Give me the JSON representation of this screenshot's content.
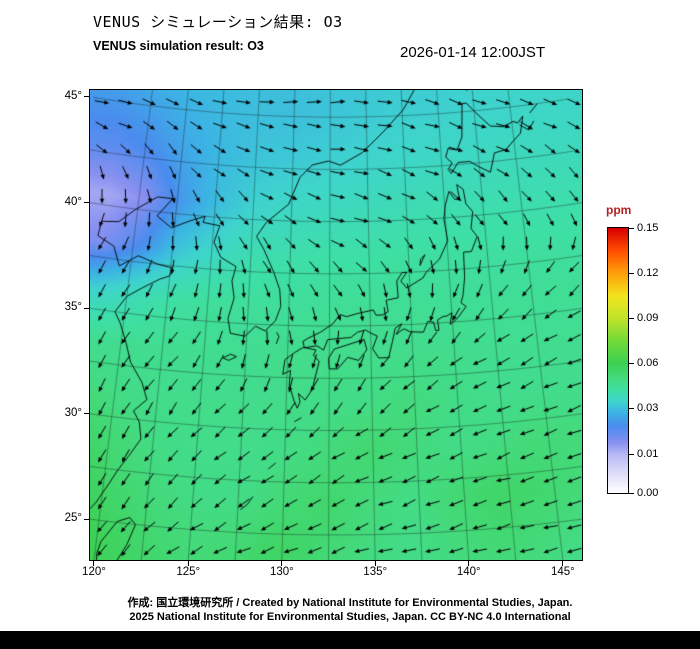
{
  "header": {
    "title_ja": "VENUS シミュレーション結果: O3",
    "title_en": "VENUS simulation result: O3",
    "datetime": "2026-01-14 12:00JST"
  },
  "footer": {
    "line1": "作成: 国立環境研究所 / Created by National Institute for Environmental Studies, Japan.",
    "line2": "2025 National Institute for Environmental Studies, Japan. CC BY-NC 4.0 International"
  },
  "chart_data": {
    "type": "heatmap",
    "title": "VENUS simulation result: O3",
    "species": "O3",
    "units": "ppm",
    "units_color": "#b22222",
    "layers": [
      "concentration-heatmap",
      "wind-vectors",
      "coastlines",
      "graticule"
    ],
    "projection": {
      "type": "conic",
      "center_lon": 132.9,
      "lon_range": [
        120,
        146.5
      ],
      "lat_range": [
        23.5,
        46.5
      ]
    },
    "grid_step_deg": 2.5,
    "x_ticks": [
      "120°",
      "125°",
      "130°",
      "135°",
      "140°",
      "145°"
    ],
    "x_tick_values": [
      120,
      125,
      130,
      135,
      140,
      145
    ],
    "y_ticks": [
      "45°",
      "40°",
      "35°",
      "30°",
      "25°"
    ],
    "y_tick_values": [
      45,
      40,
      35,
      30,
      25
    ],
    "colorbar": {
      "label": "ppm",
      "ticks": [
        {
          "label": "0.15",
          "value": 0.15,
          "pos": 0.0
        },
        {
          "label": "0.12",
          "value": 0.12,
          "pos": 0.17
        },
        {
          "label": "0.09",
          "value": 0.09,
          "pos": 0.34
        },
        {
          "label": "0.06",
          "value": 0.06,
          "pos": 0.51
        },
        {
          "label": "0.03",
          "value": 0.03,
          "pos": 0.68
        },
        {
          "label": "0.01",
          "value": 0.01,
          "pos": 0.855
        },
        {
          "label": "0.00",
          "value": 0.0,
          "pos": 1.0
        }
      ],
      "colors": [
        {
          "value": 0.0,
          "color": "#ffffff"
        },
        {
          "value": 0.008,
          "color": "#c8c8f6"
        },
        {
          "value": 0.015,
          "color": "#8890f0"
        },
        {
          "value": 0.022,
          "color": "#4a8cee"
        },
        {
          "value": 0.028,
          "color": "#3cb4e4"
        },
        {
          "value": 0.034,
          "color": "#3ed4cd"
        },
        {
          "value": 0.042,
          "color": "#3edfa5"
        },
        {
          "value": 0.05,
          "color": "#44da7c"
        },
        {
          "value": 0.06,
          "color": "#3cd052"
        },
        {
          "value": 0.075,
          "color": "#72da38"
        },
        {
          "value": 0.09,
          "color": "#c0e42a"
        },
        {
          "value": 0.105,
          "color": "#f2e41e"
        },
        {
          "value": 0.12,
          "color": "#ffa00a"
        },
        {
          "value": 0.135,
          "color": "#ff4e00"
        },
        {
          "value": 0.15,
          "color": "#d80000"
        }
      ]
    },
    "field": {
      "description": "O3 concentration (ppm), coarse grid read from map colors, rows north to south",
      "lons": [
        118,
        120.4,
        122.8,
        125.2,
        127.6,
        130,
        132.4,
        134.8,
        137.2,
        139.6,
        142,
        144.4,
        146.8
      ],
      "lats": [
        47.5,
        45.18,
        42.86,
        40.55,
        38.23,
        35.91,
        33.59,
        31.27,
        28.95,
        26.64,
        24.32,
        22.0
      ],
      "values_ppm": [
        [
          0.028,
          0.029,
          0.03,
          0.03,
          0.03,
          0.03,
          0.031,
          0.031,
          0.032,
          0.032,
          0.033,
          0.034,
          0.034
        ],
        [
          0.024,
          0.026,
          0.028,
          0.029,
          0.03,
          0.03,
          0.031,
          0.032,
          0.033,
          0.033,
          0.034,
          0.034,
          0.035
        ],
        [
          0.02,
          0.022,
          0.026,
          0.029,
          0.031,
          0.032,
          0.033,
          0.034,
          0.035,
          0.036,
          0.036,
          0.037,
          0.037
        ],
        [
          0.012,
          0.015,
          0.024,
          0.03,
          0.034,
          0.036,
          0.037,
          0.038,
          0.039,
          0.04,
          0.04,
          0.04,
          0.04
        ],
        [
          0.016,
          0.022,
          0.031,
          0.036,
          0.04,
          0.041,
          0.042,
          0.042,
          0.043,
          0.043,
          0.043,
          0.043,
          0.043
        ],
        [
          0.034,
          0.038,
          0.042,
          0.044,
          0.044,
          0.044,
          0.045,
          0.045,
          0.045,
          0.045,
          0.045,
          0.045,
          0.045
        ],
        [
          0.046,
          0.046,
          0.046,
          0.046,
          0.046,
          0.047,
          0.047,
          0.047,
          0.047,
          0.047,
          0.046,
          0.046,
          0.046
        ],
        [
          0.05,
          0.048,
          0.047,
          0.047,
          0.047,
          0.047,
          0.048,
          0.048,
          0.05,
          0.048,
          0.047,
          0.047,
          0.047
        ],
        [
          0.056,
          0.051,
          0.048,
          0.047,
          0.047,
          0.048,
          0.05,
          0.053,
          0.05,
          0.048,
          0.049,
          0.051,
          0.05
        ],
        [
          0.06,
          0.054,
          0.05,
          0.048,
          0.048,
          0.051,
          0.054,
          0.05,
          0.048,
          0.052,
          0.055,
          0.053,
          0.05
        ],
        [
          0.064,
          0.057,
          0.053,
          0.05,
          0.052,
          0.056,
          0.052,
          0.049,
          0.048,
          0.05,
          0.052,
          0.05,
          0.048
        ],
        [
          0.068,
          0.059,
          0.055,
          0.053,
          0.055,
          0.054,
          0.05,
          0.048,
          0.048,
          0.048,
          0.049,
          0.048,
          0.047
        ]
      ]
    },
    "wind": {
      "description": "wind vector field (u east+, v north+), rows north to south",
      "lons": [
        118,
        122,
        126,
        130,
        134,
        138,
        142,
        147
      ],
      "lats": [
        47,
        43.5,
        40,
        36.5,
        33,
        29.5,
        26,
        22
      ],
      "u": [
        [
          1,
          1,
          1,
          1,
          1,
          1,
          1,
          1
        ],
        [
          0.8,
          0.6,
          0.9,
          1,
          1,
          1,
          0.9,
          0.8
        ],
        [
          -0.2,
          0.1,
          0.5,
          0.9,
          1,
          0.8,
          0.6,
          0.5
        ],
        [
          -0.6,
          -0.4,
          0,
          0.4,
          0.5,
          0,
          -0.5,
          -0.7
        ],
        [
          -0.6,
          -0.7,
          -0.5,
          -0.2,
          -0.5,
          -0.8,
          -0.9,
          -1
        ],
        [
          -0.4,
          -0.6,
          -0.8,
          -0.8,
          -0.9,
          -1,
          -1,
          -1
        ],
        [
          -0.4,
          -0.6,
          -0.9,
          -1,
          -1,
          -1,
          -1,
          -1
        ],
        [
          -0.6,
          -0.8,
          -1,
          -1,
          -1,
          -1,
          -1,
          -1
        ]
      ],
      "v": [
        [
          -0.1,
          -0.1,
          0,
          0.1,
          0,
          -0.2,
          -0.2,
          -0.2
        ],
        [
          -0.4,
          -0.6,
          -0.3,
          -0.2,
          -0.1,
          -0.3,
          -0.4,
          -0.4
        ],
        [
          -1,
          -1,
          -0.8,
          -0.5,
          -0.3,
          -0.5,
          -0.7,
          -0.7
        ],
        [
          -0.8,
          -1,
          -1,
          -0.9,
          -0.8,
          -1,
          -0.9,
          -0.7
        ],
        [
          -0.9,
          -0.8,
          -0.9,
          -1,
          -0.9,
          -0.7,
          -0.5,
          -0.5
        ],
        [
          -1,
          -0.9,
          -0.7,
          -0.7,
          -0.6,
          -0.5,
          -0.4,
          -0.4
        ],
        [
          -0.9,
          -0.8,
          -0.6,
          -0.5,
          -0.4,
          -0.35,
          -0.3,
          -0.3
        ],
        [
          -0.7,
          -0.6,
          -0.4,
          -0.3,
          -0.25,
          -0.2,
          -0.2,
          -0.2
        ]
      ]
    }
  }
}
